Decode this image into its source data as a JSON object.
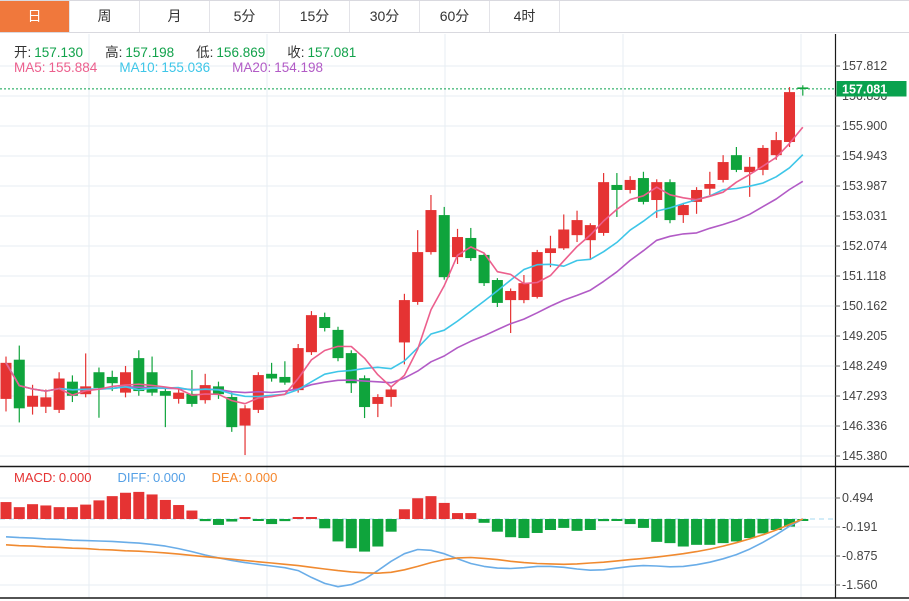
{
  "tabs": {
    "items": [
      {
        "name": "tab-day",
        "label": "日",
        "active": true
      },
      {
        "name": "tab-week",
        "label": "周",
        "active": false
      },
      {
        "name": "tab-month",
        "label": "月",
        "active": false
      },
      {
        "name": "tab-5min",
        "label": "5分",
        "active": false
      },
      {
        "name": "tab-15min",
        "label": "15分",
        "active": false
      },
      {
        "name": "tab-30min",
        "label": "30分",
        "active": false
      },
      {
        "name": "tab-60min",
        "label": "60分",
        "active": false
      },
      {
        "name": "tab-4hour",
        "label": "4时",
        "active": false
      }
    ]
  },
  "quote": {
    "items": [
      {
        "name": "open",
        "label": "开:",
        "value": "157.130",
        "color": "#12a24b"
      },
      {
        "name": "high",
        "label": "高:",
        "value": "157.198",
        "color": "#12a24b"
      },
      {
        "name": "low",
        "label": "低:",
        "value": "156.869",
        "color": "#12a24b"
      },
      {
        "name": "close",
        "label": "收:",
        "value": "157.081",
        "color": "#12a24b"
      }
    ]
  },
  "ma_row": {
    "items": [
      {
        "name": "ma5",
        "label": "MA5:",
        "value": "155.884",
        "color": "#ec5f8d"
      },
      {
        "name": "ma10",
        "label": "MA10:",
        "value": "155.036",
        "color": "#3ec6e8"
      },
      {
        "name": "ma20",
        "label": "MA20:",
        "value": "154.198",
        "color": "#b25bc6"
      }
    ]
  },
  "macd_row": {
    "items": [
      {
        "name": "macd",
        "label": "MACD:",
        "value": "0.000",
        "color": "#e53333"
      },
      {
        "name": "diff",
        "label": "DIFF:",
        "value": "0.000",
        "color": "#55a0e6"
      },
      {
        "name": "dea",
        "label": "DEA:",
        "value": "0.000",
        "color": "#f5872d"
      }
    ]
  },
  "colors": {
    "up": "#e53333",
    "down": "#0fa43c",
    "ma5": "#ec5f8d",
    "ma10": "#3ec6e8",
    "ma20": "#b25bc6",
    "diff_line": "#6aade8",
    "dea_line": "#f08a30",
    "price_line": "#0aa14e",
    "price_tag_bg": "#09a24e",
    "grid": "#e7edf3",
    "axis_text": "#444",
    "frame": "#1a1a1a",
    "zero_dash": "#a5d8f2",
    "tab_active": "#f0783c"
  },
  "chart_data": [
    {
      "type": "candlestick",
      "panel": "price",
      "ylim": [
        145.38,
        157.812
      ],
      "y_ticks": [
        "157.812",
        "156.856",
        "155.900",
        "154.943",
        "153.987",
        "153.031",
        "152.074",
        "151.118",
        "150.162",
        "149.205",
        "148.249",
        "147.293",
        "146.336",
        "145.380"
      ],
      "current_price": "157.081",
      "current_price_value": 157.081,
      "ma_periods": [
        5,
        10,
        20
      ],
      "grid": true,
      "legend_position": "none",
      "candles": [
        [
          147.2,
          148.55,
          146.8,
          148.35
        ],
        [
          148.45,
          148.9,
          146.45,
          146.9
        ],
        [
          146.95,
          147.65,
          146.7,
          147.3
        ],
        [
          146.95,
          147.5,
          146.75,
          147.25
        ],
        [
          146.85,
          148.05,
          146.75,
          147.85
        ],
        [
          147.75,
          147.95,
          147.1,
          147.3
        ],
        [
          147.35,
          148.65,
          147.25,
          147.6
        ],
        [
          148.05,
          148.2,
          146.6,
          147.55
        ],
        [
          147.9,
          148.1,
          147.45,
          147.7
        ],
        [
          147.4,
          148.25,
          147.25,
          148.05
        ],
        [
          148.5,
          148.75,
          147.3,
          147.45
        ],
        [
          148.05,
          148.55,
          147.3,
          147.4
        ],
        [
          147.45,
          147.55,
          146.3,
          147.3
        ],
        [
          147.2,
          147.55,
          147.05,
          147.4
        ],
        [
          147.36,
          148.12,
          146.95,
          147.04
        ],
        [
          147.16,
          148.0,
          147.05,
          147.64
        ],
        [
          147.6,
          147.75,
          147.2,
          147.35
        ],
        [
          147.26,
          147.4,
          146.15,
          146.3
        ],
        [
          146.35,
          147.0,
          145.41,
          146.9
        ],
        [
          146.85,
          148.05,
          146.75,
          147.96
        ],
        [
          148.0,
          148.35,
          147.75,
          147.85
        ],
        [
          147.9,
          148.4,
          147.65,
          147.72
        ],
        [
          147.48,
          148.95,
          147.4,
          148.82
        ],
        [
          148.69,
          150.0,
          148.6,
          149.87
        ],
        [
          149.81,
          149.95,
          149.35,
          149.46
        ],
        [
          149.4,
          149.5,
          148.4,
          148.5
        ],
        [
          148.66,
          148.75,
          147.39,
          147.7
        ],
        [
          147.86,
          147.95,
          146.59,
          146.94
        ],
        [
          147.04,
          147.35,
          146.62,
          147.26
        ],
        [
          147.26,
          147.6,
          146.95,
          147.5
        ],
        [
          149.0,
          150.55,
          148.3,
          150.35
        ],
        [
          150.29,
          152.58,
          150.2,
          151.88
        ],
        [
          151.88,
          153.7,
          151.8,
          153.22
        ],
        [
          153.06,
          153.32,
          151.0,
          151.08
        ],
        [
          151.72,
          152.62,
          151.5,
          152.36
        ],
        [
          152.33,
          152.65,
          151.6,
          151.69
        ],
        [
          151.79,
          151.85,
          150.8,
          150.89
        ],
        [
          150.99,
          151.05,
          150.13,
          150.26
        ],
        [
          150.35,
          150.72,
          149.3,
          150.64
        ],
        [
          150.35,
          151.15,
          150.25,
          150.89
        ],
        [
          150.45,
          151.95,
          150.4,
          151.88
        ],
        [
          151.85,
          152.4,
          151.4,
          152.0
        ],
        [
          152.0,
          153.08,
          151.95,
          152.6
        ],
        [
          152.42,
          153.2,
          152.2,
          152.9
        ],
        [
          152.26,
          152.8,
          151.63,
          152.74
        ],
        [
          152.49,
          154.4,
          152.4,
          154.11
        ],
        [
          154.02,
          154.4,
          153.0,
          153.86
        ],
        [
          153.86,
          154.3,
          153.75,
          154.18
        ],
        [
          154.24,
          154.44,
          153.4,
          153.48
        ],
        [
          153.54,
          154.2,
          152.97,
          154.11
        ],
        [
          154.11,
          154.2,
          152.8,
          152.9
        ],
        [
          153.06,
          153.45,
          152.81,
          153.38
        ],
        [
          153.48,
          153.95,
          153.1,
          153.86
        ],
        [
          153.9,
          154.44,
          153.7,
          154.05
        ],
        [
          154.18,
          154.97,
          154.1,
          154.75
        ],
        [
          154.97,
          155.23,
          154.43,
          154.5
        ],
        [
          154.43,
          154.91,
          153.64,
          154.6
        ],
        [
          154.5,
          155.29,
          154.33,
          155.2
        ],
        [
          154.97,
          155.71,
          154.82,
          155.45
        ],
        [
          155.39,
          157.14,
          155.23,
          156.98
        ],
        [
          157.13,
          157.198,
          156.869,
          157.081
        ]
      ]
    },
    {
      "type": "bar",
      "panel": "macd",
      "ylim": [
        -1.56,
        0.494
      ],
      "y_ticks": [
        "0.494",
        "-0.191",
        "-0.875",
        "-1.560"
      ],
      "zero_line": true,
      "grid": true,
      "values": [
        0.4,
        0.28,
        0.35,
        0.32,
        0.28,
        0.28,
        0.34,
        0.44,
        0.54,
        0.62,
        0.64,
        0.58,
        0.45,
        0.33,
        0.2,
        -0.05,
        -0.14,
        -0.06,
        0.04,
        -0.04,
        -0.12,
        -0.05,
        0.03,
        0.02,
        -0.22,
        -0.53,
        -0.69,
        -0.77,
        -0.65,
        -0.3,
        0.23,
        0.49,
        0.54,
        0.38,
        0.14,
        0.14,
        -0.09,
        -0.3,
        -0.43,
        -0.45,
        -0.33,
        -0.26,
        -0.21,
        -0.28,
        -0.26,
        -0.05,
        -0.03,
        -0.12,
        -0.21,
        -0.54,
        -0.57,
        -0.65,
        -0.61,
        -0.61,
        -0.57,
        -0.53,
        -0.45,
        -0.34,
        -0.26,
        -0.18,
        -0.01
      ],
      "series": [
        {
          "name": "DIFF",
          "values": [
            -0.42,
            -0.44,
            -0.45,
            -0.47,
            -0.48,
            -0.5,
            -0.51,
            -0.52,
            -0.53,
            -0.55,
            -0.57,
            -0.6,
            -0.64,
            -0.7,
            -0.77,
            -0.85,
            -0.92,
            -0.98,
            -1.03,
            -1.07,
            -1.11,
            -1.15,
            -1.22,
            -1.38,
            -1.52,
            -1.6,
            -1.55,
            -1.42,
            -1.22,
            -1.0,
            -0.82,
            -0.72,
            -0.74,
            -0.82,
            -0.94,
            -1.05,
            -1.12,
            -1.16,
            -1.17,
            -1.15,
            -1.12,
            -1.12,
            -1.14,
            -1.18,
            -1.21,
            -1.2,
            -1.16,
            -1.12,
            -1.1,
            -1.11,
            -1.13,
            -1.12,
            -1.08,
            -1.02,
            -0.94,
            -0.84,
            -0.71,
            -0.55,
            -0.37,
            -0.17,
            0.0
          ]
        },
        {
          "name": "DEA",
          "values": [
            -0.61,
            -0.63,
            -0.64,
            -0.66,
            -0.67,
            -0.69,
            -0.7,
            -0.72,
            -0.73,
            -0.75,
            -0.76,
            -0.78,
            -0.8,
            -0.83,
            -0.86,
            -0.89,
            -0.92,
            -0.95,
            -0.98,
            -1.01,
            -1.04,
            -1.07,
            -1.1,
            -1.14,
            -1.18,
            -1.22,
            -1.25,
            -1.27,
            -1.28,
            -1.26,
            -1.2,
            -1.12,
            -1.03,
            -0.96,
            -0.92,
            -0.91,
            -0.93,
            -0.96,
            -1.0,
            -1.03,
            -1.05,
            -1.06,
            -1.07,
            -1.06,
            -1.04,
            -1.02,
            -0.99,
            -0.96,
            -0.93,
            -0.9,
            -0.86,
            -0.82,
            -0.77,
            -0.71,
            -0.64,
            -0.56,
            -0.47,
            -0.37,
            -0.26,
            -0.13,
            0.0
          ]
        }
      ]
    }
  ]
}
